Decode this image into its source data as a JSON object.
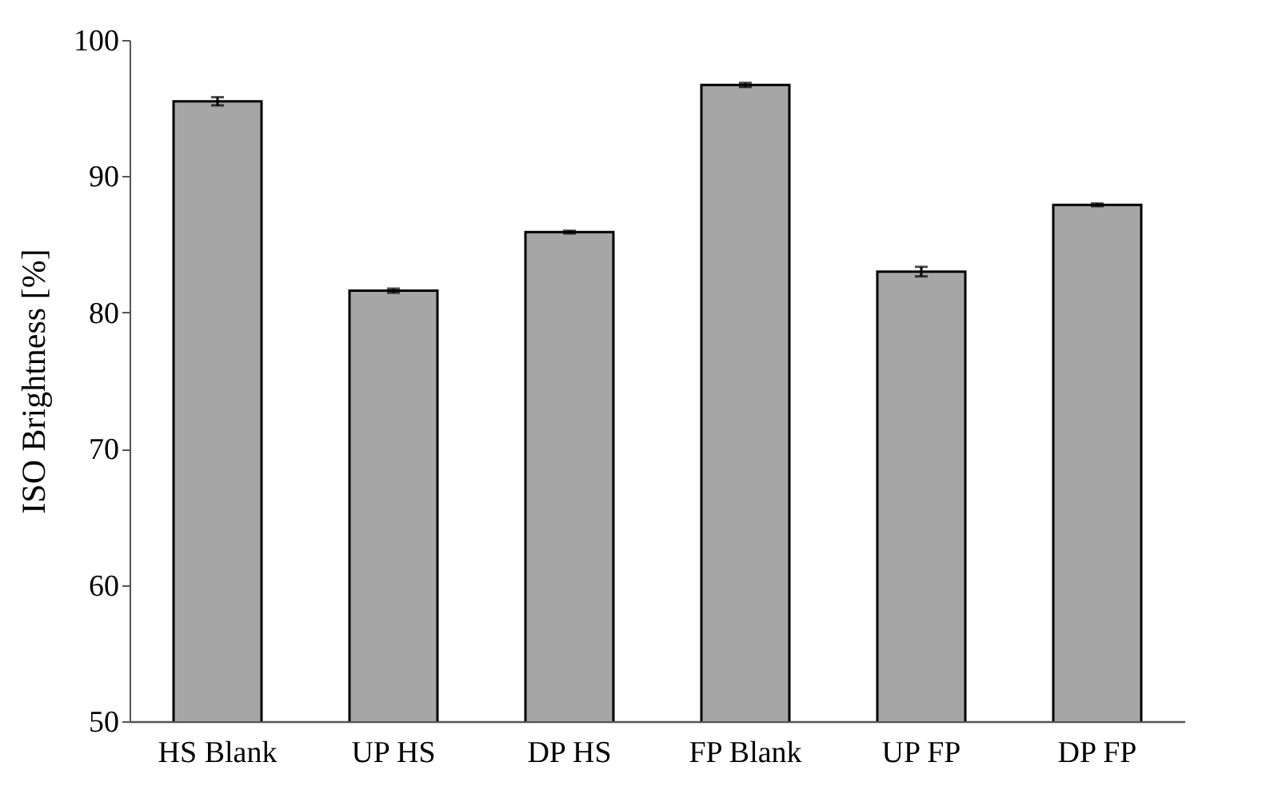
{
  "chart_data": {
    "type": "bar",
    "ylabel": "ISO Brightness [%]",
    "categories": [
      "HS Blank",
      "UP HS",
      "DP HS",
      "FP Blank",
      "UP FP",
      "DP FP"
    ],
    "values": [
      95.5,
      81.6,
      85.9,
      96.7,
      83.0,
      87.9
    ],
    "errors": [
      0.3,
      0.15,
      0.1,
      0.15,
      0.35,
      0.1
    ],
    "color": "#a6a6a6",
    "ylim": [
      50,
      100
    ],
    "yticks": [
      50,
      60,
      70,
      80,
      90,
      100
    ],
    "grid": false
  }
}
